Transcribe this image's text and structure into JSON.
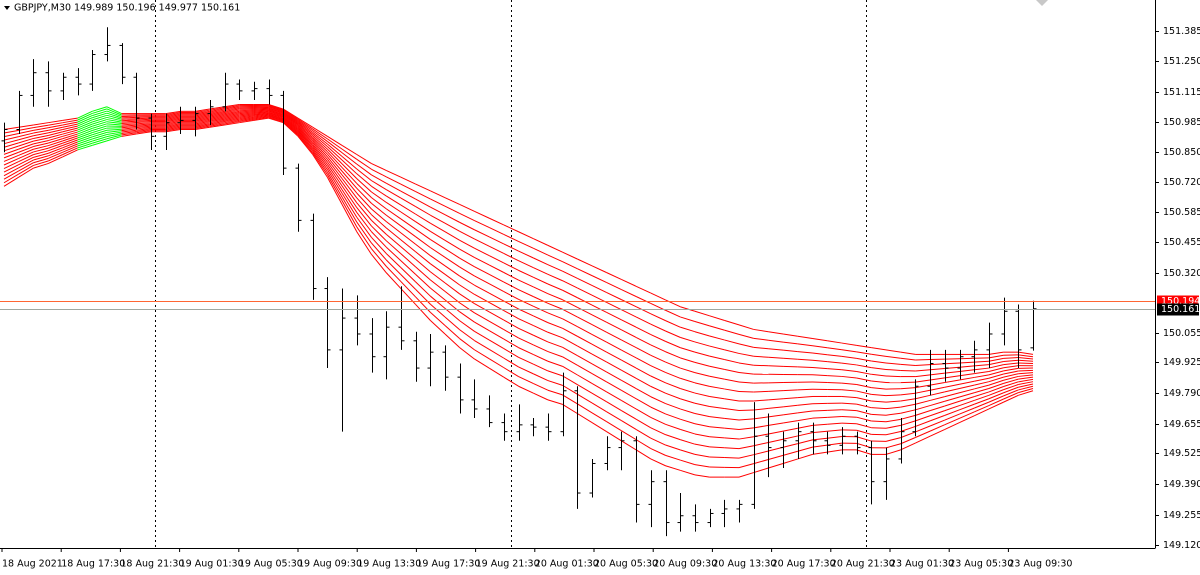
{
  "chart_data": {
    "type": "ohlc",
    "title": "GBPJPY,M30  149.989 150.196 149.977 150.161",
    "open": [
      150.9,
      150.95,
      151.1,
      151.2,
      151.12,
      151.18,
      151.15,
      151.28,
      151.32,
      151.18,
      151.0,
      150.92,
      150.98,
      150.99,
      151.02,
      151.05,
      151.15,
      151.12,
      151.13,
      151.1,
      150.78,
      150.55,
      150.25,
      149.98,
      150.12,
      150.05,
      149.95,
      150.08,
      150.02,
      149.9,
      149.97,
      149.86,
      149.76,
      149.72,
      149.66,
      149.62,
      149.65,
      149.64,
      149.62,
      149.8,
      149.35,
      149.48,
      149.55,
      149.58,
      149.3,
      149.4,
      149.22,
      149.25,
      149.22,
      149.26,
      149.28,
      149.3,
      149.6,
      149.55,
      149.58,
      149.62,
      149.58,
      149.56,
      149.6,
      149.55,
      149.4,
      149.5,
      149.62,
      149.82,
      149.92,
      149.9,
      149.95,
      149.98,
      150.05,
      150.15,
      149.989
    ],
    "high": [
      150.98,
      151.12,
      151.26,
      151.25,
      151.2,
      151.22,
      151.3,
      151.4,
      151.33,
      151.2,
      151.02,
      151.02,
      151.05,
      151.05,
      151.08,
      151.2,
      151.17,
      151.16,
      151.17,
      151.12,
      150.8,
      150.58,
      150.3,
      150.25,
      150.22,
      150.12,
      150.15,
      150.26,
      150.06,
      150.05,
      150.0,
      149.92,
      149.85,
      149.78,
      149.7,
      149.74,
      149.68,
      149.7,
      149.88,
      149.82,
      149.5,
      149.6,
      149.62,
      149.6,
      149.45,
      149.45,
      149.35,
      149.3,
      149.28,
      149.32,
      149.32,
      149.75,
      149.7,
      149.62,
      149.66,
      149.66,
      149.62,
      149.64,
      149.62,
      149.58,
      149.55,
      149.68,
      149.85,
      149.98,
      149.98,
      149.98,
      150.02,
      150.1,
      150.21,
      150.18,
      150.196
    ],
    "low": [
      150.85,
      150.93,
      151.05,
      151.05,
      151.08,
      151.1,
      151.12,
      151.25,
      151.15,
      150.95,
      150.86,
      150.86,
      150.93,
      150.92,
      150.97,
      151.03,
      151.08,
      151.08,
      151.06,
      150.75,
      150.5,
      150.2,
      149.9,
      149.62,
      150.0,
      149.88,
      149.85,
      149.98,
      149.84,
      149.82,
      149.8,
      149.7,
      149.68,
      149.64,
      149.58,
      149.58,
      149.6,
      149.58,
      149.6,
      149.28,
      149.33,
      149.45,
      149.45,
      149.22,
      149.2,
      149.16,
      149.18,
      149.18,
      149.2,
      149.2,
      149.22,
      149.28,
      149.42,
      149.46,
      149.5,
      149.52,
      149.52,
      149.52,
      149.52,
      149.3,
      149.32,
      149.48,
      149.6,
      149.78,
      149.84,
      149.85,
      149.88,
      149.9,
      150.0,
      149.9,
      149.977
    ],
    "close": [
      150.95,
      151.1,
      151.2,
      151.12,
      151.18,
      151.15,
      151.28,
      151.32,
      151.18,
      151.0,
      150.92,
      150.98,
      150.99,
      151.02,
      151.05,
      151.15,
      151.12,
      151.13,
      151.1,
      150.78,
      150.55,
      150.25,
      149.98,
      150.12,
      150.05,
      149.95,
      150.08,
      150.02,
      149.9,
      149.97,
      149.86,
      149.76,
      149.72,
      149.66,
      149.62,
      149.65,
      149.64,
      149.62,
      149.8,
      149.35,
      149.48,
      149.55,
      149.58,
      149.3,
      149.4,
      149.22,
      149.25,
      149.22,
      149.26,
      149.28,
      149.3,
      149.6,
      149.55,
      149.58,
      149.62,
      149.58,
      149.56,
      149.6,
      149.55,
      149.4,
      149.5,
      149.62,
      149.82,
      149.92,
      149.9,
      149.95,
      149.98,
      150.05,
      150.15,
      149.98,
      150.161
    ],
    "bar_color": "#000000",
    "ribbon": {
      "upper": [
        150.95,
        150.96,
        150.97,
        150.98,
        150.99,
        151.0,
        151.03,
        151.05,
        151.02,
        151.02,
        151.02,
        151.02,
        151.03,
        151.03,
        151.04,
        151.05,
        151.06,
        151.06,
        151.06,
        151.04,
        151.0,
        150.96,
        150.92,
        150.88,
        150.84,
        150.8,
        150.77,
        150.74,
        150.71,
        150.68,
        150.65,
        150.62,
        150.59,
        150.56,
        150.53,
        150.5,
        150.47,
        150.44,
        150.41,
        150.38,
        150.35,
        150.32,
        150.29,
        150.26,
        150.23,
        150.2,
        150.17,
        150.15,
        150.13,
        150.11,
        150.09,
        150.07,
        150.06,
        150.05,
        150.04,
        150.03,
        150.02,
        150.01,
        150.0,
        149.99,
        149.98,
        149.97,
        149.96,
        149.96,
        149.96,
        149.96,
        149.96,
        149.96,
        149.97,
        149.97,
        149.96
      ],
      "lower": [
        150.7,
        150.74,
        150.78,
        150.8,
        150.83,
        150.86,
        150.88,
        150.9,
        150.92,
        150.93,
        150.94,
        150.94,
        150.95,
        150.95,
        150.96,
        150.97,
        150.98,
        150.99,
        151.0,
        150.98,
        150.92,
        150.84,
        150.74,
        150.62,
        150.5,
        150.4,
        150.32,
        150.25,
        150.18,
        150.11,
        150.05,
        149.99,
        149.94,
        149.9,
        149.86,
        149.82,
        149.79,
        149.76,
        149.74,
        149.7,
        149.66,
        149.62,
        149.58,
        149.54,
        149.5,
        149.47,
        149.45,
        149.43,
        149.42,
        149.42,
        149.42,
        149.44,
        149.46,
        149.48,
        149.5,
        149.52,
        149.53,
        149.54,
        149.54,
        149.52,
        149.52,
        149.54,
        149.57,
        149.6,
        149.63,
        149.66,
        149.69,
        149.72,
        149.75,
        149.78,
        149.8
      ],
      "colors": [
        "#ff0000",
        "#ff0000",
        "#ff0000",
        "#ff0000",
        "#ff0000",
        "#00ff00",
        "#00ff00",
        "#00ff00",
        "#ff0000",
        "#ff0000",
        "#ff0000",
        "#ff0000",
        "#ff0000",
        "#ff0000",
        "#ff0000",
        "#ff0000",
        "#ff0000",
        "#ff0000",
        "#ff0000",
        "#ff0000",
        "#ff0000",
        "#ff0000",
        "#ff0000",
        "#ff0000",
        "#ff0000",
        "#ff0000",
        "#ff0000",
        "#ff0000",
        "#ff0000",
        "#ff0000",
        "#ff0000",
        "#ff0000",
        "#ff0000",
        "#ff0000",
        "#ff0000",
        "#ff0000",
        "#ff0000",
        "#ff0000",
        "#ff0000",
        "#ff0000",
        "#ff0000",
        "#ff0000",
        "#ff0000",
        "#ff0000",
        "#ff0000",
        "#ff0000",
        "#ff0000",
        "#ff0000",
        "#ff0000",
        "#ff0000",
        "#ff0000",
        "#ff0000",
        "#ff0000",
        "#ff0000",
        "#ff0000",
        "#ff0000",
        "#ff0000",
        "#ff0000",
        "#ff0000",
        "#ff0000",
        "#ff0000",
        "#ff0000",
        "#ff0000",
        "#ff0000",
        "#ff0000",
        "#ff0000",
        "#ff0000",
        "#ff0000",
        "#ff0000",
        "#ff0000",
        "#ff0000"
      ]
    },
    "ylim": [
      149.108,
      151.52
    ],
    "yticks": [
      {
        "value": 151.385,
        "label": "151.385"
      },
      {
        "value": 151.25,
        "label": "151.250"
      },
      {
        "value": 151.115,
        "label": "151.115"
      },
      {
        "value": 150.985,
        "label": "150.985"
      },
      {
        "value": 150.85,
        "label": "150.850"
      },
      {
        "value": 150.72,
        "label": "150.720"
      },
      {
        "value": 150.585,
        "label": "150.585"
      },
      {
        "value": 150.455,
        "label": "150.455"
      },
      {
        "value": 150.32,
        "label": "150.320"
      },
      {
        "value": 150.055,
        "label": "150.055"
      },
      {
        "value": 149.925,
        "label": "149.925"
      },
      {
        "value": 149.79,
        "label": "149.790"
      },
      {
        "value": 149.655,
        "label": "149.655"
      },
      {
        "value": 149.525,
        "label": "149.525"
      },
      {
        "value": 149.39,
        "label": "149.390"
      },
      {
        "value": 149.255,
        "label": "149.255"
      },
      {
        "value": 149.12,
        "label": "149.120"
      }
    ],
    "price_lines": [
      {
        "value": 150.194,
        "label": "150.194",
        "color": "#ff6633",
        "label_bg": "#ff0000"
      },
      {
        "value": 150.161,
        "label": "150.161",
        "color": "#a0a8a0",
        "label_bg": "#000000"
      }
    ],
    "xlabels": [
      "18 Aug 2021",
      "18 Aug 17:30",
      "18 Aug 21:30",
      "19 Aug 01:30",
      "19 Aug 05:30",
      "19 Aug 09:30",
      "19 Aug 13:30",
      "19 Aug 17:30",
      "19 Aug 21:30",
      "20 Aug 01:30",
      "20 Aug 05:30",
      "20 Aug 09:30",
      "20 Aug 13:30",
      "20 Aug 17:30",
      "20 Aug 21:30",
      "23 Aug 01:30",
      "23 Aug 05:30",
      "23 Aug 09:30"
    ]
  }
}
